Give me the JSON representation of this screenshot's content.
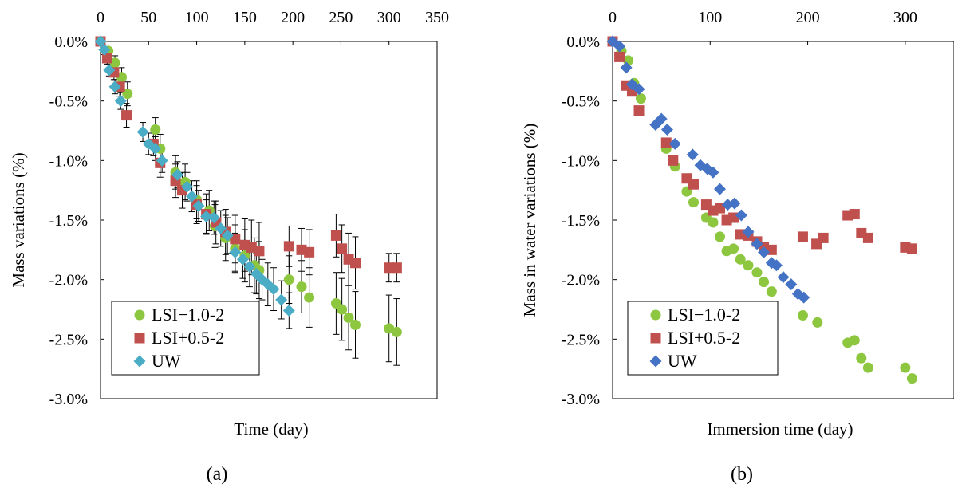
{
  "chart_data": [
    {
      "type": "scatter",
      "panel_label": "(a)",
      "xlabel": "Time (day)",
      "ylabel": "Mass variations (%)",
      "xlim": [
        0,
        350
      ],
      "ylim": [
        -3.0,
        0.0
      ],
      "x_ticks": [
        "0",
        "50",
        "100",
        "150",
        "200",
        "250",
        "300",
        "350"
      ],
      "y_ticks": [
        "0.0%",
        "-0.5%",
        "-1.0%",
        "-1.5%",
        "-2.0%",
        "-2.5%",
        "-3.0%"
      ],
      "x_axis_position": "top",
      "error_bars": true,
      "grid": false,
      "legend_position": "bottom-left",
      "series": [
        {
          "name": "LSI−1.0-2",
          "color": "#8dc63f",
          "marker": "circle",
          "points": [
            [
              0,
              0
            ],
            [
              8,
              -0.08
            ],
            [
              15,
              -0.18
            ],
            [
              22,
              -0.3
            ],
            [
              28,
              -0.44
            ],
            [
              57,
              -0.74
            ],
            [
              62,
              -0.9
            ],
            [
              78,
              -1.1
            ],
            [
              88,
              -1.18
            ],
            [
              100,
              -1.33
            ],
            [
              113,
              -1.42
            ],
            [
              119,
              -1.55
            ],
            [
              130,
              -1.65
            ],
            [
              140,
              -1.74
            ],
            [
              150,
              -1.8
            ],
            [
              160,
              -1.88
            ],
            [
              165,
              -1.92
            ],
            [
              196,
              -2.0
            ],
            [
              209,
              -2.06
            ],
            [
              217,
              -2.15
            ],
            [
              245,
              -2.2
            ],
            [
              251,
              -2.25
            ],
            [
              258,
              -2.32
            ],
            [
              265,
              -2.38
            ],
            [
              300,
              -2.41
            ],
            [
              308,
              -2.44
            ]
          ],
          "err": [
            0,
            0.05,
            0.06,
            0.08,
            0.1,
            0.1,
            0.12,
            0.14,
            0.15,
            0.16,
            0.17,
            0.18,
            0.19,
            0.2,
            0.22,
            0.23,
            0.24,
            0.2,
            0.22,
            0.25,
            0.26,
            0.26,
            0.27,
            0.28,
            0.28,
            0.28
          ]
        },
        {
          "name": "LSI+0.5-2",
          "color": "#c0504d",
          "marker": "square",
          "points": [
            [
              0,
              0
            ],
            [
              7,
              -0.14
            ],
            [
              14,
              -0.26
            ],
            [
              20,
              -0.38
            ],
            [
              27,
              -0.62
            ],
            [
              55,
              -0.86
            ],
            [
              62,
              -1.02
            ],
            [
              78,
              -1.17
            ],
            [
              85,
              -1.25
            ],
            [
              100,
              -1.37
            ],
            [
              110,
              -1.45
            ],
            [
              120,
              -1.52
            ],
            [
              130,
              -1.6
            ],
            [
              140,
              -1.66
            ],
            [
              150,
              -1.71
            ],
            [
              157,
              -1.73
            ],
            [
              165,
              -1.76
            ],
            [
              196,
              -1.72
            ],
            [
              209,
              -1.75
            ],
            [
              217,
              -1.77
            ],
            [
              245,
              -1.63
            ],
            [
              251,
              -1.74
            ],
            [
              258,
              -1.83
            ],
            [
              265,
              -1.86
            ],
            [
              300,
              -1.9
            ],
            [
              308,
              -1.9
            ]
          ],
          "err": [
            0,
            0.05,
            0.06,
            0.08,
            0.1,
            0.1,
            0.12,
            0.14,
            0.15,
            0.16,
            0.17,
            0.18,
            0.19,
            0.2,
            0.22,
            0.23,
            0.24,
            0.17,
            0.18,
            0.19,
            0.18,
            0.2,
            0.22,
            0.22,
            0.12,
            0.12
          ]
        },
        {
          "name": "UW",
          "color": "#4bacc6",
          "marker": "diamond",
          "points": [
            [
              0,
              0
            ],
            [
              4,
              -0.07
            ],
            [
              9,
              -0.24
            ],
            [
              15,
              -0.38
            ],
            [
              21,
              -0.5
            ],
            [
              44,
              -0.76
            ],
            [
              50,
              -0.86
            ],
            [
              57,
              -0.9
            ],
            [
              64,
              -1.0
            ],
            [
              80,
              -1.12
            ],
            [
              90,
              -1.22
            ],
            [
              95,
              -1.3
            ],
            [
              102,
              -1.38
            ],
            [
              110,
              -1.47
            ],
            [
              118,
              -1.48
            ],
            [
              125,
              -1.57
            ],
            [
              132,
              -1.63
            ],
            [
              140,
              -1.77
            ],
            [
              148,
              -1.83
            ],
            [
              155,
              -1.89
            ],
            [
              162,
              -1.95
            ],
            [
              168,
              -2.0
            ],
            [
              174,
              -2.04
            ],
            [
              180,
              -2.08
            ],
            [
              188,
              -2.17
            ],
            [
              196,
              -2.26
            ]
          ],
          "err": [
            0,
            0.04,
            0.05,
            0.06,
            0.07,
            0.08,
            0.09,
            0.1,
            0.1,
            0.11,
            0.12,
            0.13,
            0.13,
            0.14,
            0.14,
            0.15,
            0.15,
            0.16,
            0.16,
            0.17,
            0.17,
            0.17,
            0.18,
            0.18,
            0.16,
            0.15
          ]
        }
      ]
    },
    {
      "type": "scatter",
      "panel_label": "(b)",
      "xlabel": "Immersion time (day)",
      "ylabel": "Mass in water variations (%)",
      "xlim": [
        0,
        350
      ],
      "ylim": [
        -3.0,
        0.0
      ],
      "x_ticks": [
        "0",
        "100",
        "200",
        "300"
      ],
      "y_ticks": [
        "0.0%",
        "-0.5%",
        "-1.0%",
        "-1.5%",
        "-2.0%",
        "-2.5%",
        "-3.0%"
      ],
      "x_axis_position": "top",
      "error_bars": false,
      "grid": false,
      "legend_position": "bottom-left",
      "series": [
        {
          "name": "LSI−1.0-2",
          "color": "#8dc63f",
          "marker": "circle",
          "points": [
            [
              0,
              0
            ],
            [
              9,
              -0.08
            ],
            [
              16,
              -0.16
            ],
            [
              22,
              -0.35
            ],
            [
              29,
              -0.48
            ],
            [
              55,
              -0.9
            ],
            [
              64,
              -1.05
            ],
            [
              76,
              -1.26
            ],
            [
              83,
              -1.35
            ],
            [
              96,
              -1.48
            ],
            [
              103,
              -1.52
            ],
            [
              110,
              -1.64
            ],
            [
              117,
              -1.76
            ],
            [
              124,
              -1.74
            ],
            [
              131,
              -1.83
            ],
            [
              139,
              -1.88
            ],
            [
              148,
              -1.94
            ],
            [
              155,
              -2.02
            ],
            [
              163,
              -2.1
            ],
            [
              195,
              -2.3
            ],
            [
              210,
              -2.36
            ],
            [
              241,
              -2.53
            ],
            [
              248,
              -2.51
            ],
            [
              255,
              -2.66
            ],
            [
              262,
              -2.74
            ],
            [
              300,
              -2.74
            ],
            [
              307,
              -2.83
            ]
          ]
        },
        {
          "name": "LSI+0.5-2",
          "color": "#c0504d",
          "marker": "square",
          "points": [
            [
              0,
              0
            ],
            [
              7,
              -0.13
            ],
            [
              14,
              -0.37
            ],
            [
              20,
              -0.42
            ],
            [
              27,
              -0.58
            ],
            [
              55,
              -0.85
            ],
            [
              62,
              -1.0
            ],
            [
              76,
              -1.15
            ],
            [
              83,
              -1.2
            ],
            [
              96,
              -1.37
            ],
            [
              103,
              -1.42
            ],
            [
              110,
              -1.4
            ],
            [
              117,
              -1.5
            ],
            [
              124,
              -1.48
            ],
            [
              131,
              -1.62
            ],
            [
              139,
              -1.63
            ],
            [
              148,
              -1.68
            ],
            [
              155,
              -1.73
            ],
            [
              163,
              -1.75
            ],
            [
              195,
              -1.64
            ],
            [
              209,
              -1.7
            ],
            [
              216,
              -1.65
            ],
            [
              241,
              -1.46
            ],
            [
              248,
              -1.45
            ],
            [
              255,
              -1.61
            ],
            [
              262,
              -1.65
            ],
            [
              300,
              -1.73
            ],
            [
              307,
              -1.74
            ]
          ]
        },
        {
          "name": "UW",
          "color": "#4472c4",
          "marker": "diamond",
          "points": [
            [
              0,
              0
            ],
            [
              7,
              -0.04
            ],
            [
              14,
              -0.22
            ],
            [
              20,
              -0.36
            ],
            [
              27,
              -0.4
            ],
            [
              44,
              -0.7
            ],
            [
              50,
              -0.65
            ],
            [
              56,
              -0.74
            ],
            [
              64,
              -0.86
            ],
            [
              82,
              -0.95
            ],
            [
              90,
              -1.04
            ],
            [
              97,
              -1.07
            ],
            [
              103,
              -1.1
            ],
            [
              110,
              -1.24
            ],
            [
              118,
              -1.37
            ],
            [
              125,
              -1.36
            ],
            [
              132,
              -1.46
            ],
            [
              139,
              -1.6
            ],
            [
              148,
              -1.7
            ],
            [
              155,
              -1.77
            ],
            [
              163,
              -1.86
            ],
            [
              168,
              -1.88
            ],
            [
              175,
              -1.98
            ],
            [
              183,
              -2.04
            ],
            [
              190,
              -2.12
            ],
            [
              196,
              -2.15
            ]
          ]
        }
      ]
    }
  ]
}
